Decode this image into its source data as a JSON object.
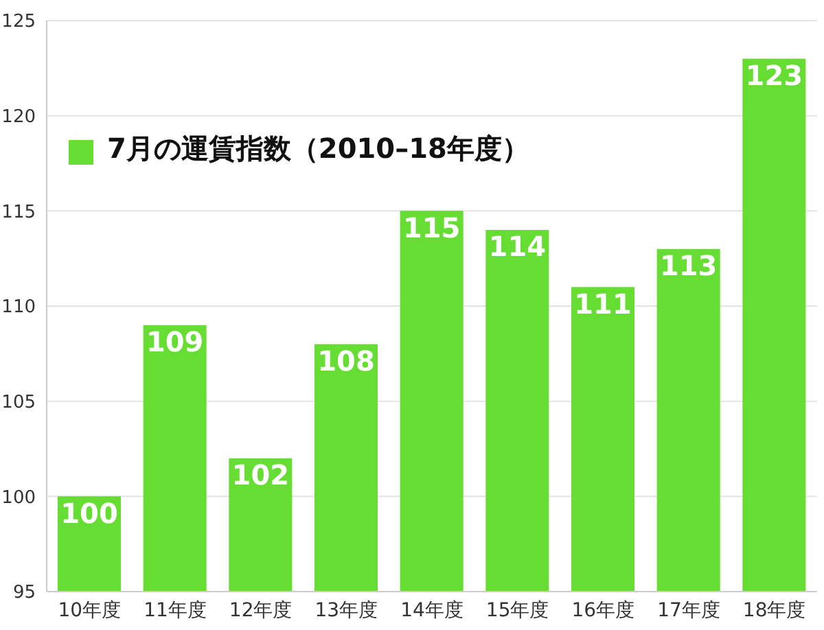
{
  "chart_data": {
    "type": "bar",
    "categories": [
      "10年度",
      "11年度",
      "12年度",
      "13年度",
      "14年度",
      "15年度",
      "16年度",
      "17年度",
      "18年度"
    ],
    "series": [
      {
        "name": "7月の運賃指数（2010–18年度）",
        "color": "#66dd33",
        "values": [
          100,
          109,
          102,
          108,
          115,
          114,
          111,
          113,
          123
        ]
      }
    ],
    "ylim": [
      95,
      125
    ],
    "yticks": [
      95,
      100,
      105,
      110,
      115,
      120,
      125
    ],
    "grid": "y",
    "legend": "top left",
    "data_labels": true
  }
}
